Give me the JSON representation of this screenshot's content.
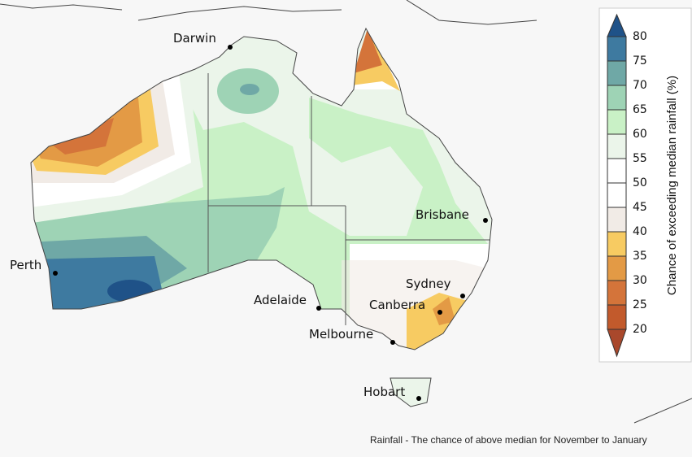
{
  "map": {
    "cities": [
      {
        "name": "Darwin"
      },
      {
        "name": "Perth"
      },
      {
        "name": "Adelaide"
      },
      {
        "name": "Melbourne"
      },
      {
        "name": "Hobart"
      },
      {
        "name": "Brisbane"
      },
      {
        "name": "Sydney"
      },
      {
        "name": "Canberra"
      }
    ],
    "caption": "Rainfall - The chance of above median for November to January"
  },
  "legend": {
    "title": "Chance of exceeding median rainfall (%)",
    "ticks": [
      20,
      25,
      30,
      35,
      40,
      45,
      50,
      55,
      60,
      65,
      70,
      75,
      80
    ],
    "colors": [
      "#c25a2c",
      "#d4743a",
      "#e39a45",
      "#f7cb62",
      "#f1ebe6",
      "#ffffff",
      "#ffffff",
      "#ebf5ea",
      "#c9f1c6",
      "#9ed3b5",
      "#6fa8a6",
      "#3e7aa0"
    ],
    "low_color": "#a9482c",
    "high_color": "#1f5288"
  }
}
